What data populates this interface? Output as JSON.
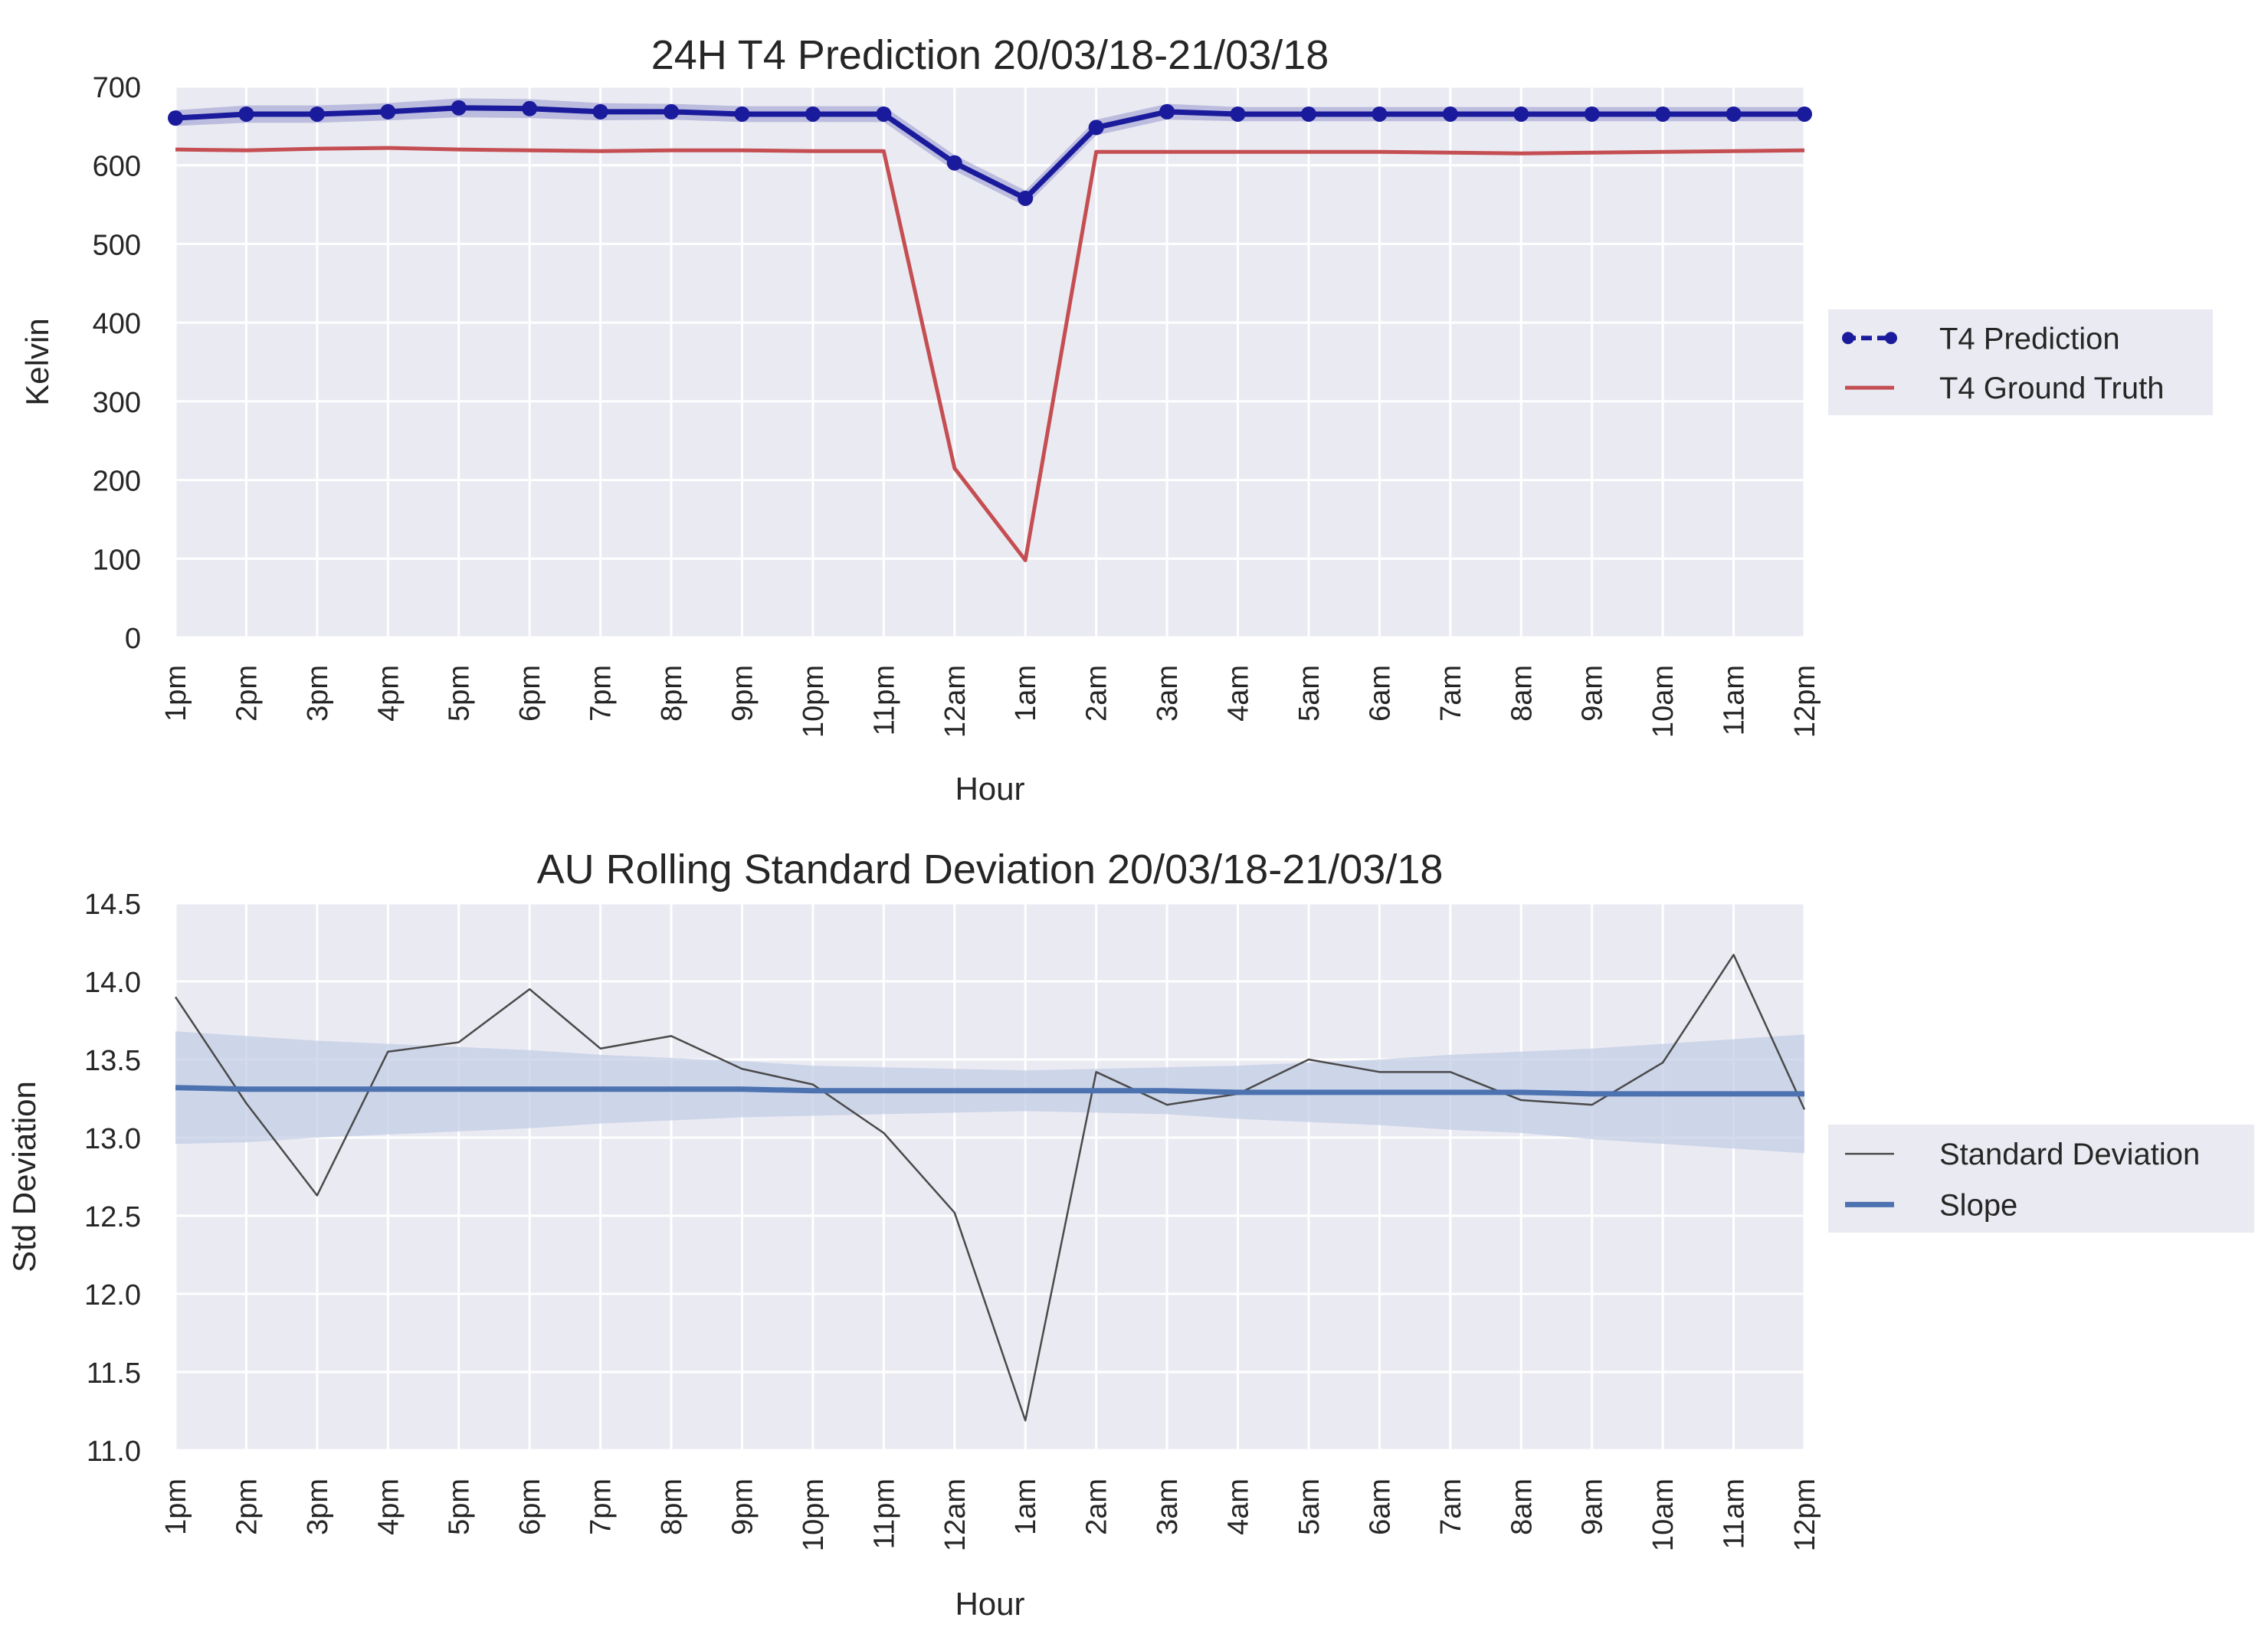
{
  "colors": {
    "background": "#ffffff",
    "plot_bg": "#eaeaf2",
    "grid": "#ffffff",
    "prediction": "#1a1a9c",
    "prediction_band": "#9595cf",
    "ground_truth": "#c44e52",
    "std_line": "#4a4a4a",
    "slope": "#4c72b0",
    "slope_band": "#c3cde5",
    "text": "#262626"
  },
  "chart_data": [
    {
      "type": "line",
      "title": "24H T4 Prediction 20/03/18-21/03/18",
      "xlabel": "Hour",
      "ylabel": "Kelvin",
      "ylim": [
        0,
        700
      ],
      "yticks": [
        "0",
        "100",
        "200",
        "300",
        "400",
        "500",
        "600",
        "700"
      ],
      "categories": [
        "1pm",
        "2pm",
        "3pm",
        "4pm",
        "5pm",
        "6pm",
        "7pm",
        "8pm",
        "9pm",
        "10pm",
        "11pm",
        "12am",
        "1am",
        "2am",
        "3am",
        "4am",
        "5am",
        "6am",
        "7am",
        "8am",
        "9am",
        "10am",
        "11am",
        "12pm"
      ],
      "grid": true,
      "legend_position": "center-right outside",
      "series": [
        {
          "name": "T4 Prediction",
          "style": "line-with-markers",
          "values": [
            660,
            665,
            665,
            668,
            673,
            672,
            668,
            668,
            665,
            665,
            665,
            603,
            558,
            648,
            668,
            665,
            665,
            665,
            665,
            665,
            665,
            665,
            665,
            665
          ],
          "band_halfwidth": [
            10,
            11,
            11,
            11,
            12,
            12,
            11,
            10,
            10,
            10,
            10,
            10,
            10,
            10,
            10,
            9,
            9,
            9,
            9,
            9,
            9,
            9,
            9,
            9
          ]
        },
        {
          "name": "T4 Ground Truth",
          "style": "line",
          "values": [
            620,
            619,
            621,
            622,
            620,
            619,
            618,
            619,
            619,
            618,
            618,
            215,
            98,
            617,
            617,
            617,
            617,
            617,
            616,
            615,
            616,
            617,
            618,
            619
          ]
        }
      ]
    },
    {
      "type": "line",
      "title": "AU Rolling Standard Deviation 20/03/18-21/03/18",
      "xlabel": "Hour",
      "ylabel": "Std Deviation",
      "ylim": [
        11.0,
        14.5
      ],
      "yticks": [
        "11.0",
        "11.5",
        "12.0",
        "12.5",
        "13.0",
        "13.5",
        "14.0",
        "14.5"
      ],
      "categories": [
        "1pm",
        "2pm",
        "3pm",
        "4pm",
        "5pm",
        "6pm",
        "7pm",
        "8pm",
        "9pm",
        "10pm",
        "11pm",
        "12am",
        "1am",
        "2am",
        "3am",
        "4am",
        "5am",
        "6am",
        "7am",
        "8am",
        "9am",
        "10am",
        "11am",
        "12pm"
      ],
      "grid": true,
      "legend_position": "center-right outside",
      "series": [
        {
          "name": "Standard Deviation",
          "style": "thin-line",
          "values": [
            13.9,
            13.22,
            12.63,
            13.55,
            13.61,
            13.95,
            13.57,
            13.65,
            13.44,
            13.34,
            13.03,
            12.52,
            11.19,
            13.42,
            13.21,
            13.28,
            13.5,
            13.42,
            13.42,
            13.24,
            13.21,
            13.48,
            14.17,
            13.18
          ]
        },
        {
          "name": "Slope",
          "style": "regression-line",
          "values": [
            13.32,
            13.31,
            13.31,
            13.31,
            13.31,
            13.31,
            13.31,
            13.31,
            13.31,
            13.3,
            13.3,
            13.3,
            13.3,
            13.3,
            13.3,
            13.29,
            13.29,
            13.29,
            13.29,
            13.29,
            13.28,
            13.28,
            13.28,
            13.28
          ],
          "band_halfwidth": [
            0.36,
            0.34,
            0.31,
            0.29,
            0.27,
            0.25,
            0.22,
            0.2,
            0.18,
            0.16,
            0.15,
            0.14,
            0.13,
            0.14,
            0.15,
            0.17,
            0.19,
            0.21,
            0.24,
            0.26,
            0.29,
            0.32,
            0.35,
            0.38
          ]
        }
      ]
    }
  ]
}
